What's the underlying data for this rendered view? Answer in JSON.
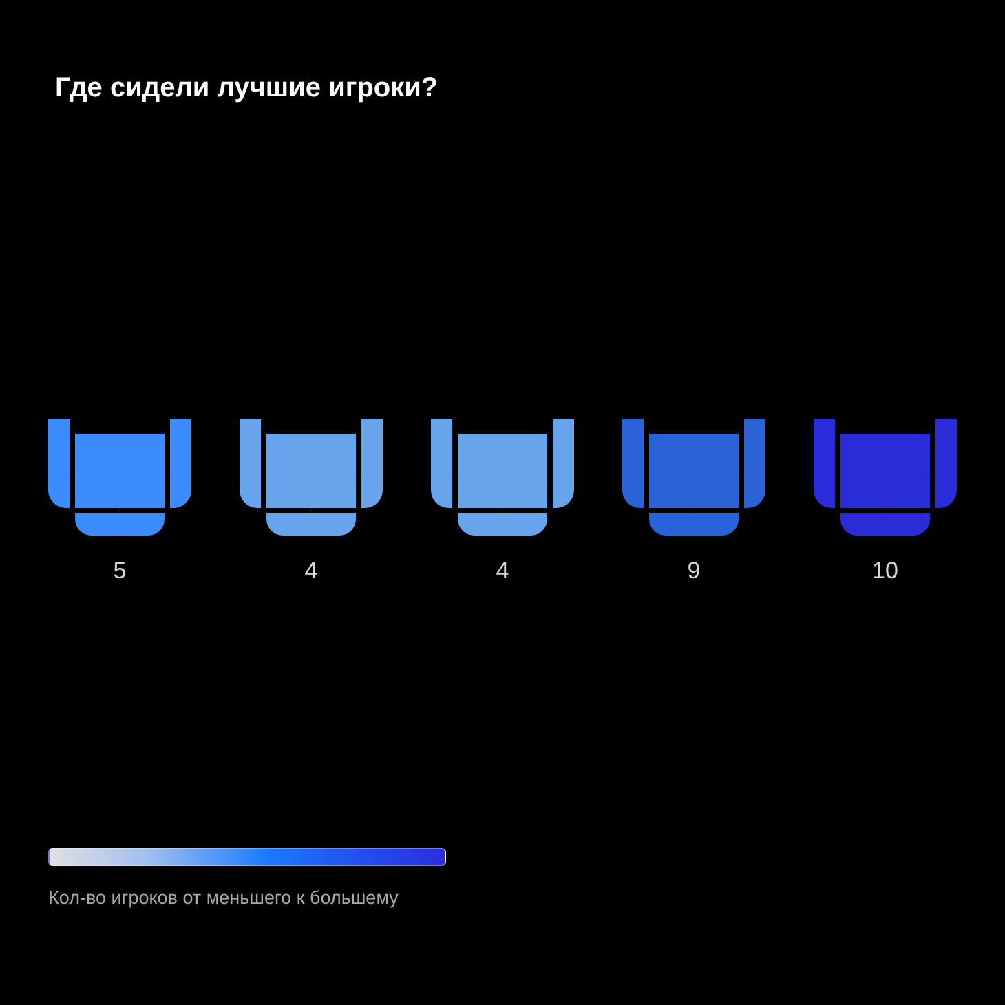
{
  "chart_data": {
    "type": "other",
    "title": "Где сидели лучшие игроки?",
    "categories": [
      null,
      null,
      null,
      null,
      null
    ],
    "values": [
      5,
      4,
      4,
      9,
      10
    ],
    "colors": [
      "#3a8cff",
      "#68a4ec",
      "#68a4ec",
      "#2a62d8",
      "#2a2cd8"
    ],
    "data_labels": true,
    "clabel": "Кол-во игроков от меньшего к большему"
  }
}
